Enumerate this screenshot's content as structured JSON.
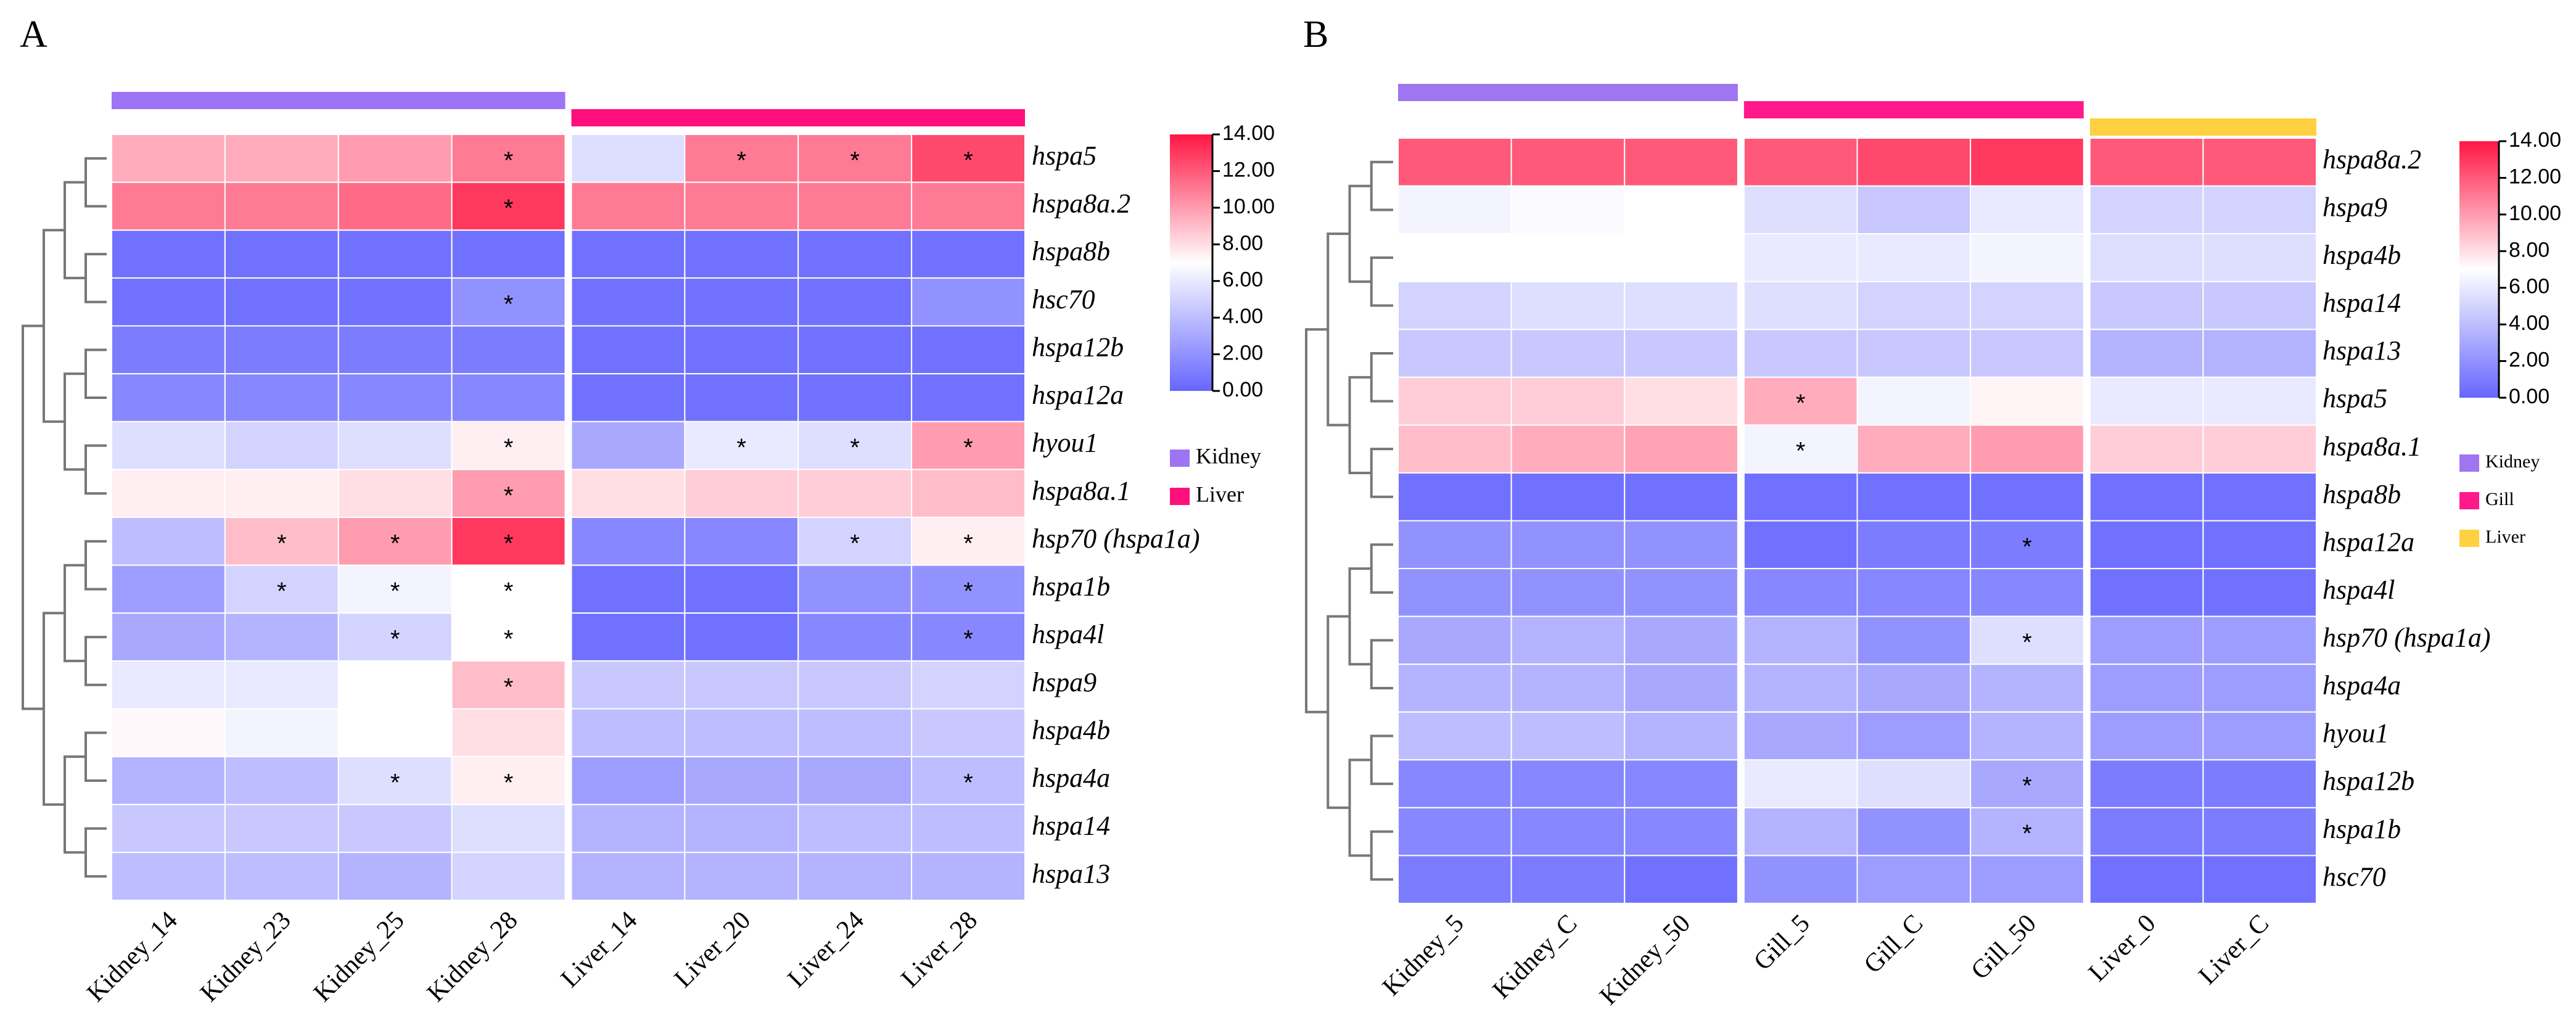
{
  "chart_data": [
    {
      "type": "heatmap",
      "title": "A",
      "rows": [
        "hspa5",
        "hspa8a.2",
        "hspa8b",
        "hsc70",
        "hspa12b",
        "hspa12a",
        "hyou1",
        "hspa8a.1",
        "hsp70 (hspa1a)",
        "hspa1b",
        "hspa4l",
        "hspa9",
        "hspa4b",
        "hspa4a",
        "hspa14",
        "hspa13"
      ],
      "columns": [
        "Kidney_14",
        "Kidney_23",
        "Kidney_25",
        "Kidney_28",
        "Liver_14",
        "Liver_20",
        "Liver_24",
        "Liver_28"
      ],
      "values": [
        [
          9.5,
          9.5,
          10,
          11,
          5.5,
          11,
          11,
          12.5
        ],
        [
          11,
          11,
          11.5,
          13,
          11,
          11,
          11,
          11
        ],
        [
          0.5,
          0.5,
          0.5,
          0.5,
          0.5,
          0.5,
          0.5,
          0.5
        ],
        [
          0.5,
          0.5,
          0.5,
          2,
          0.5,
          0.5,
          0.5,
          2
        ],
        [
          1,
          1,
          1,
          1,
          0.5,
          0.5,
          0.5,
          0.5
        ],
        [
          1.5,
          1.5,
          1.5,
          1.5,
          0.5,
          0.5,
          0.5,
          0.5
        ],
        [
          5.5,
          5,
          5.5,
          7.5,
          3,
          6,
          5.5,
          10
        ],
        [
          7.5,
          7.5,
          8,
          10,
          8,
          8.5,
          8.5,
          9
        ],
        [
          4,
          9,
          10,
          13,
          1.5,
          1.5,
          5,
          7.5
        ],
        [
          2.5,
          5,
          6.5,
          7,
          0.5,
          0.5,
          2,
          2
        ],
        [
          3,
          3.5,
          5,
          7,
          0.5,
          0.5,
          1.5,
          1.5
        ],
        [
          6,
          6,
          7,
          9,
          4.5,
          4.5,
          4.5,
          5
        ],
        [
          7.2,
          6.5,
          7,
          8,
          4,
          4,
          4,
          4.5
        ],
        [
          3.5,
          4,
          5.5,
          7.5,
          2.5,
          3,
          3,
          4
        ],
        [
          4.5,
          4.5,
          4.5,
          5.5,
          3.5,
          3.5,
          4,
          4
        ],
        [
          4,
          4,
          3.5,
          5,
          3.5,
          3.5,
          3.5,
          3.5
        ]
      ],
      "annotations": [
        [
          null,
          null,
          null,
          "*",
          null,
          "*",
          "*",
          "*"
        ],
        [
          null,
          null,
          null,
          "*",
          null,
          null,
          null,
          null
        ],
        [
          null,
          null,
          null,
          null,
          null,
          null,
          null,
          null
        ],
        [
          null,
          null,
          null,
          "*",
          null,
          null,
          null,
          null
        ],
        [
          null,
          null,
          null,
          null,
          null,
          null,
          null,
          null
        ],
        [
          null,
          null,
          null,
          null,
          null,
          null,
          null,
          null
        ],
        [
          null,
          null,
          null,
          "*",
          null,
          "*",
          "*",
          "*"
        ],
        [
          null,
          null,
          null,
          "*",
          null,
          null,
          null,
          null
        ],
        [
          null,
          "*",
          "*",
          "*",
          null,
          null,
          "*",
          "*"
        ],
        [
          null,
          "*",
          "*",
          "*",
          null,
          null,
          null,
          "*"
        ],
        [
          null,
          null,
          "*",
          "*",
          null,
          null,
          null,
          "*"
        ],
        [
          null,
          null,
          null,
          "*",
          null,
          null,
          null,
          null
        ],
        [
          null,
          null,
          null,
          null,
          null,
          null,
          null,
          null
        ],
        [
          null,
          null,
          "*",
          "*",
          null,
          null,
          null,
          "*"
        ],
        [
          null,
          null,
          null,
          null,
          null,
          null,
          null,
          null
        ],
        [
          null,
          null,
          null,
          null,
          null,
          null,
          null,
          null
        ]
      ],
      "groups": [
        {
          "name": "Kidney",
          "color": "#9d74f4"
        },
        {
          "name": "Liver",
          "color": "#ff0f7b"
        }
      ],
      "colormap": [
        "#6666ff",
        "#ffffff",
        "#ff1744"
      ],
      "clim": [
        0,
        14
      ],
      "cticks": [
        {
          "value": 0,
          "label": "0.00"
        },
        {
          "value": 2,
          "label": "2.00"
        },
        {
          "value": 4,
          "label": "4.00"
        },
        {
          "value": 6,
          "label": "6.00"
        },
        {
          "value": 8,
          "label": "8.00"
        },
        {
          "value": 10,
          "label": "10.00"
        },
        {
          "value": 12,
          "label": "12.00"
        },
        {
          "value": 14,
          "label": "14.00"
        }
      ]
    },
    {
      "type": "heatmap",
      "title": "B",
      "rows": [
        "hspa8a.2",
        "hspa9",
        "hspa4b",
        "hspa14",
        "hspa13",
        "hspa5",
        "hspa8a.1",
        "hspa8b",
        "hspa12a",
        "hspa4l",
        "hsp70 (hspa1a)",
        "hspa4a",
        "hyou1",
        "hspa12b",
        "hspa1b",
        "hsc70"
      ],
      "columns": [
        "Kidney_5",
        "Kidney_C",
        "Kidney_50",
        "Gill_5",
        "Gill_C",
        "Gill_50",
        "Liver_0",
        "Liver_C"
      ],
      "values": [
        [
          12,
          12,
          12,
          12,
          12.5,
          13,
          12,
          12
        ],
        [
          6.5,
          6.8,
          7,
          5.5,
          4.5,
          6,
          5,
          5
        ],
        [
          7,
          7,
          7,
          6,
          6,
          6.5,
          5.5,
          5.5
        ],
        [
          5,
          5.5,
          5.5,
          5.5,
          5,
          5,
          4.5,
          4.5
        ],
        [
          4.5,
          4.5,
          4.5,
          4.5,
          4.5,
          4.5,
          3.5,
          3.5
        ],
        [
          8.5,
          8.5,
          8,
          9.5,
          6.5,
          7.3,
          6,
          6
        ],
        [
          9,
          9.5,
          9.8,
          6.5,
          9.5,
          10,
          8.5,
          8.5
        ],
        [
          0.5,
          0.5,
          0.5,
          0.5,
          0.5,
          0.5,
          0.5,
          0.5
        ],
        [
          2,
          2,
          2,
          0.5,
          1,
          1,
          0.5,
          0.5
        ],
        [
          2,
          2,
          2,
          1.5,
          1.5,
          1.5,
          0.5,
          0.5
        ],
        [
          3,
          3.5,
          3,
          3.5,
          2,
          5.5,
          2.5,
          2.5
        ],
        [
          3.5,
          3.5,
          3,
          3.5,
          3,
          3.5,
          2.5,
          2.5
        ],
        [
          4,
          4,
          3.5,
          3,
          2.5,
          3.5,
          2.5,
          2.5
        ],
        [
          1.5,
          1.5,
          1.5,
          6,
          5.5,
          3,
          1,
          1
        ],
        [
          1.5,
          1.5,
          1.5,
          3.5,
          2,
          3.5,
          1,
          1
        ],
        [
          1,
          1,
          0.5,
          2,
          2.5,
          2.5,
          0.5,
          0.5
        ]
      ],
      "annotations": [
        [
          null,
          null,
          null,
          null,
          null,
          null,
          null,
          null
        ],
        [
          null,
          null,
          null,
          null,
          null,
          null,
          null,
          null
        ],
        [
          null,
          null,
          null,
          null,
          null,
          null,
          null,
          null
        ],
        [
          null,
          null,
          null,
          null,
          null,
          null,
          null,
          null
        ],
        [
          null,
          null,
          null,
          null,
          null,
          null,
          null,
          null
        ],
        [
          null,
          null,
          null,
          "*",
          null,
          null,
          null,
          null
        ],
        [
          null,
          null,
          null,
          "*",
          null,
          null,
          null,
          null
        ],
        [
          null,
          null,
          null,
          null,
          null,
          null,
          null,
          null
        ],
        [
          null,
          null,
          null,
          null,
          null,
          "*",
          null,
          null
        ],
        [
          null,
          null,
          null,
          null,
          null,
          null,
          null,
          null
        ],
        [
          null,
          null,
          null,
          null,
          null,
          "*",
          null,
          null
        ],
        [
          null,
          null,
          null,
          null,
          null,
          null,
          null,
          null
        ],
        [
          null,
          null,
          null,
          null,
          null,
          null,
          null,
          null
        ],
        [
          null,
          null,
          null,
          null,
          null,
          "*",
          null,
          null
        ],
        [
          null,
          null,
          null,
          null,
          null,
          "*",
          null,
          null
        ],
        [
          null,
          null,
          null,
          null,
          null,
          null,
          null,
          null
        ]
      ],
      "groups": [
        {
          "name": "Kidney",
          "color": "#9f75f0"
        },
        {
          "name": "Gill",
          "color": "#ff1a8c"
        },
        {
          "name": "Liver",
          "color": "#ffd040"
        }
      ],
      "colormap": [
        "#6666ff",
        "#ffffff",
        "#ff1744"
      ],
      "clim": [
        0,
        14
      ],
      "cticks": [
        {
          "value": 0,
          "label": "0.00"
        },
        {
          "value": 2,
          "label": "2.00"
        },
        {
          "value": 4,
          "label": "4.00"
        },
        {
          "value": 6,
          "label": "6.00"
        },
        {
          "value": 8,
          "label": "8.00"
        },
        {
          "value": 10,
          "label": "10.00"
        },
        {
          "value": 12,
          "label": "12.00"
        },
        {
          "value": 14,
          "label": "14.00"
        }
      ]
    }
  ]
}
